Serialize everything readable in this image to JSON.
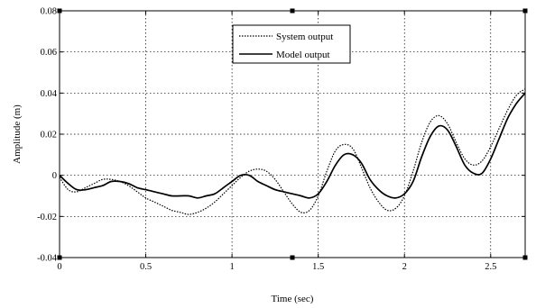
{
  "chart_data": {
    "type": "line",
    "title": "",
    "xlabel": "Time (sec)",
    "ylabel": "Amplitude (m)",
    "xlim": [
      0,
      2.7
    ],
    "ylim": [
      -0.04,
      0.08
    ],
    "xticks": [
      0,
      0.5,
      1,
      1.5,
      2,
      2.5
    ],
    "xtick_labels": [
      "0",
      "0.5",
      "1",
      "1.5",
      "2",
      "2.5"
    ],
    "yticks": [
      -0.04,
      -0.02,
      0,
      0.02,
      0.04,
      0.06,
      0.08
    ],
    "ytick_labels": [
      "-0.04",
      "-0.02",
      "0",
      "0.02",
      "0.04",
      "0.06",
      "0.08"
    ],
    "grid": true,
    "legend": "top-center",
    "series": [
      {
        "name": "System output",
        "style": "dotted",
        "color": "#000000",
        "x": [
          0,
          0.05,
          0.1,
          0.15,
          0.2,
          0.25,
          0.3,
          0.35,
          0.4,
          0.45,
          0.5,
          0.55,
          0.6,
          0.65,
          0.7,
          0.75,
          0.8,
          0.85,
          0.9,
          0.95,
          1.0,
          1.05,
          1.1,
          1.15,
          1.2,
          1.25,
          1.3,
          1.35,
          1.4,
          1.45,
          1.5,
          1.55,
          1.6,
          1.65,
          1.7,
          1.75,
          1.8,
          1.85,
          1.9,
          1.95,
          2.0,
          2.05,
          2.1,
          2.15,
          2.2,
          2.25,
          2.3,
          2.35,
          2.4,
          2.45,
          2.5,
          2.55,
          2.6,
          2.65,
          2.7
        ],
        "y": [
          -0.001,
          -0.007,
          -0.008,
          -0.006,
          -0.004,
          -0.002,
          -0.002,
          -0.003,
          -0.005,
          -0.008,
          -0.011,
          -0.013,
          -0.015,
          -0.017,
          -0.018,
          -0.019,
          -0.018,
          -0.016,
          -0.013,
          -0.009,
          -0.005,
          -0.001,
          0.002,
          0.003,
          0.002,
          -0.002,
          -0.008,
          -0.014,
          -0.018,
          -0.017,
          -0.01,
          0.002,
          0.012,
          0.015,
          0.013,
          0.004,
          -0.006,
          -0.013,
          -0.017,
          -0.016,
          -0.01,
          0.002,
          0.016,
          0.026,
          0.029,
          0.025,
          0.016,
          0.008,
          0.005,
          0.007,
          0.014,
          0.023,
          0.032,
          0.039,
          0.042
        ]
      },
      {
        "name": "Model output",
        "style": "solid",
        "color": "#000000",
        "x": [
          0,
          0.05,
          0.1,
          0.15,
          0.2,
          0.25,
          0.3,
          0.35,
          0.4,
          0.45,
          0.5,
          0.55,
          0.6,
          0.65,
          0.7,
          0.75,
          0.8,
          0.85,
          0.9,
          0.95,
          1.0,
          1.05,
          1.1,
          1.15,
          1.2,
          1.25,
          1.3,
          1.35,
          1.4,
          1.45,
          1.5,
          1.55,
          1.6,
          1.65,
          1.7,
          1.75,
          1.8,
          1.85,
          1.9,
          1.95,
          2.0,
          2.05,
          2.1,
          2.15,
          2.2,
          2.25,
          2.3,
          2.35,
          2.4,
          2.45,
          2.5,
          2.55,
          2.6,
          2.65,
          2.7
        ],
        "y": [
          0.0,
          -0.004,
          -0.007,
          -0.007,
          -0.006,
          -0.005,
          -0.003,
          -0.003,
          -0.004,
          -0.006,
          -0.007,
          -0.008,
          -0.009,
          -0.01,
          -0.01,
          -0.01,
          -0.011,
          -0.01,
          -0.009,
          -0.006,
          -0.003,
          0.0,
          0.0,
          -0.003,
          -0.005,
          -0.007,
          -0.008,
          -0.009,
          -0.01,
          -0.011,
          -0.009,
          -0.003,
          0.005,
          0.01,
          0.01,
          0.006,
          -0.002,
          -0.007,
          -0.01,
          -0.011,
          -0.009,
          -0.003,
          0.009,
          0.019,
          0.024,
          0.022,
          0.014,
          0.005,
          0.001,
          0.001,
          0.008,
          0.018,
          0.028,
          0.035,
          0.04
        ]
      }
    ]
  }
}
